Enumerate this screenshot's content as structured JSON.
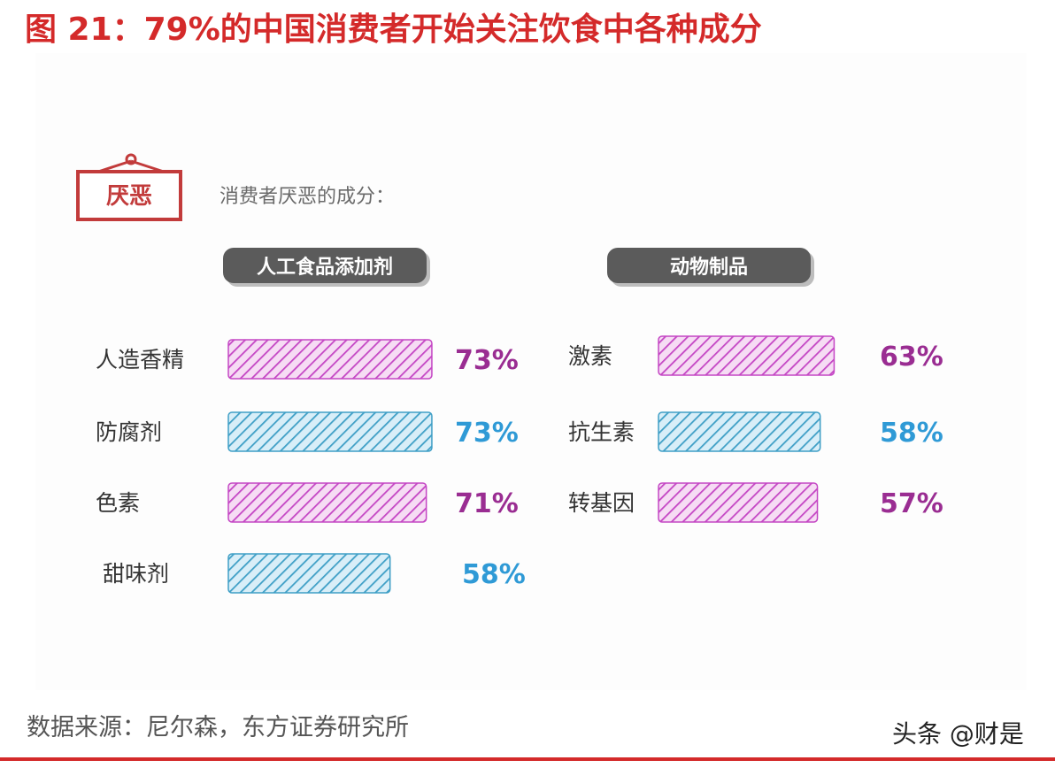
{
  "figure": {
    "title": "图 21：79%的中国消费者开始关注饮食中各种成分",
    "source": "数据来源：尼尔森，东方证券研究所",
    "watermark": "头条 @财是"
  },
  "colors": {
    "title": "#d42a2a",
    "purple": "#9a2d92",
    "blue": "#2f9ad6",
    "purple_hatch": "#c446c4",
    "blue_hatch": "#3f9fc6",
    "header_pill": "#5b5b5b"
  },
  "chart_data": {
    "type": "bar",
    "sign_label": "厌恶",
    "subtitle": "消费者厌恶的成分：",
    "unit": "%",
    "groups": [
      {
        "name": "人工食品添加剂",
        "categories": [
          "人造香精",
          "防腐剂",
          "色素",
          "甜味剂"
        ],
        "values": [
          73,
          73,
          71,
          58
        ],
        "colors": [
          "purple",
          "blue",
          "purple",
          "blue"
        ]
      },
      {
        "name": "动物制品",
        "categories": [
          "激素",
          "抗生素",
          "转基因"
        ],
        "values": [
          63,
          58,
          57
        ],
        "colors": [
          "purple",
          "blue",
          "purple"
        ]
      }
    ]
  }
}
